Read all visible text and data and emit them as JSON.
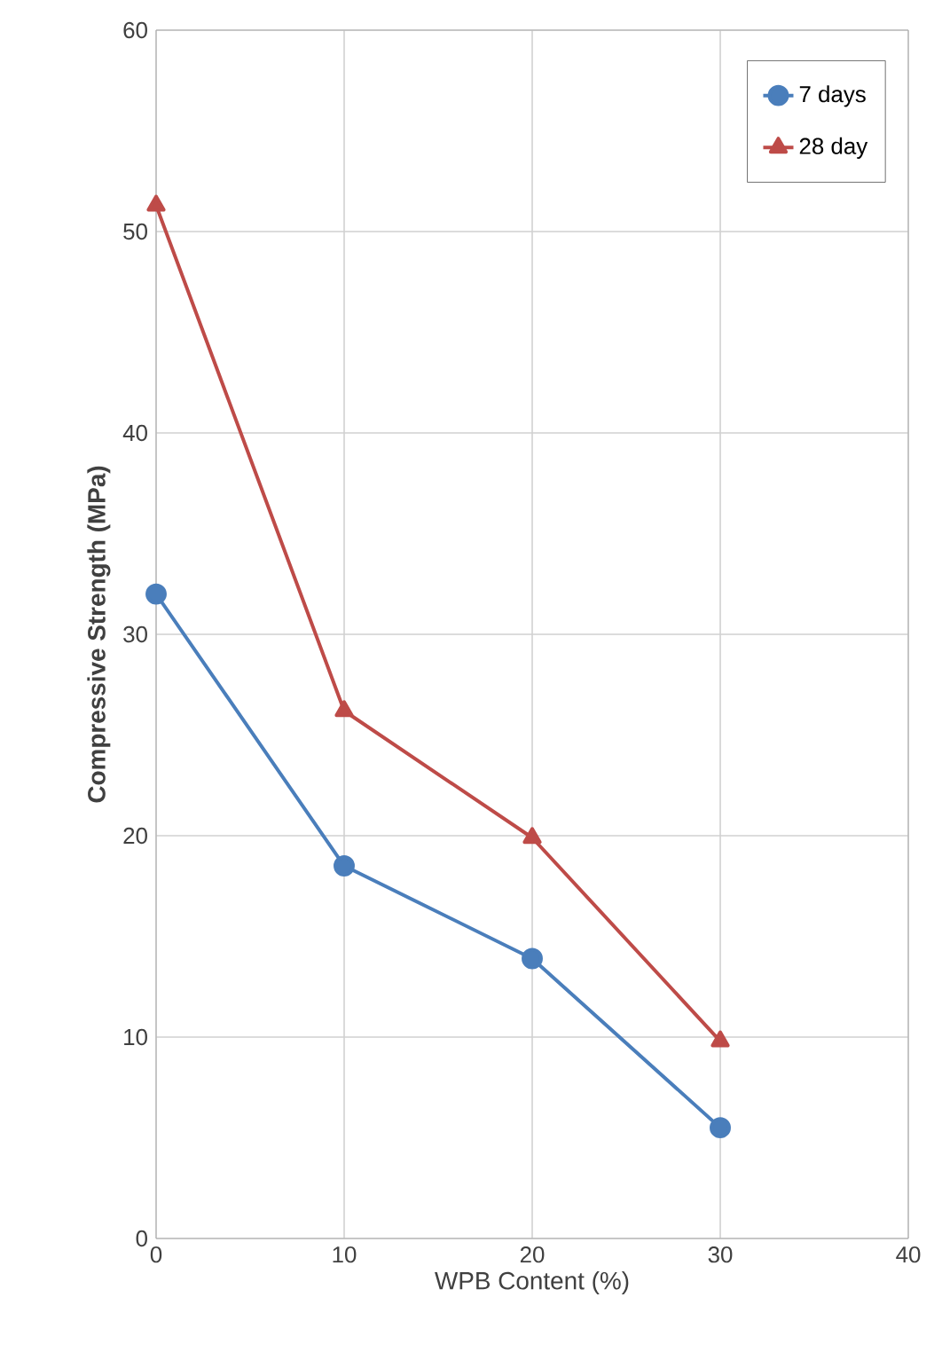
{
  "chart_data": {
    "type": "line",
    "xlabel": "WPB Content (%)",
    "ylabel": "Compressive Strength  (MPa)",
    "x": [
      0,
      10,
      20,
      30
    ],
    "series": [
      {
        "name": "7 days",
        "color": "#4a7ebb",
        "marker": "circle",
        "values": [
          32,
          18.5,
          13.9,
          5.5
        ]
      },
      {
        "name": "28 day",
        "color": "#be4b48",
        "marker": "triangle",
        "values": [
          51.3,
          26.2,
          19.9,
          9.8
        ]
      }
    ],
    "xlim": [
      0,
      40
    ],
    "xticks": [
      0,
      10,
      20,
      30,
      40
    ],
    "ylim": [
      0,
      60
    ],
    "yticks": [
      0,
      10,
      20,
      30,
      40,
      50,
      60
    ],
    "grid": true,
    "legend": "top right"
  }
}
